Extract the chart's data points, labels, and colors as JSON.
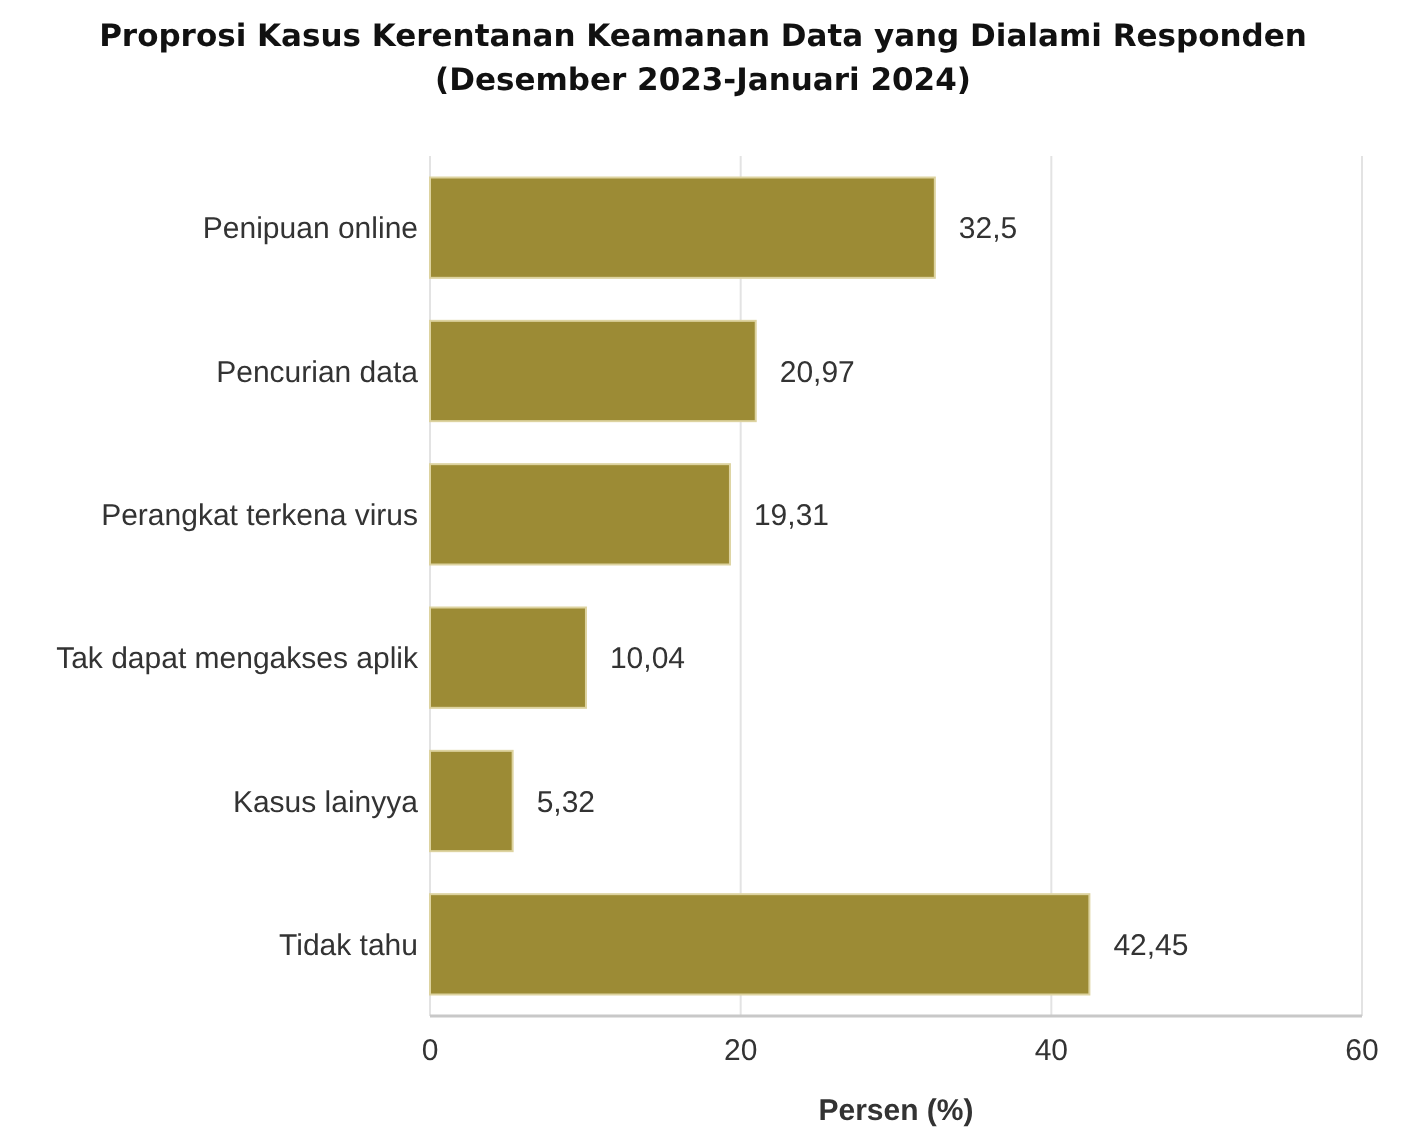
{
  "chart_data": {
    "type": "bar",
    "orientation": "horizontal",
    "title": "Proprosi Kasus Kerentanan Keamanan Data yang Dialami Responden\n(Desember 2023-Januari 2024)",
    "xlabel": "Persen (%)",
    "categories": [
      "Penipuan online",
      "Pencurian data",
      "Perangkat terkena virus",
      "Tak dapat mengakses aplik",
      "Kasus lainyya",
      "Tidak tahu"
    ],
    "values": [
      32.5,
      20.97,
      19.31,
      10.04,
      5.32,
      42.45
    ],
    "value_labels": [
      "32,5",
      "20,97",
      "19,31",
      "10,04",
      "5,32",
      "42,45"
    ],
    "color": "#9c8b35",
    "xlim": [
      0,
      60
    ],
    "xticks": [
      0,
      20,
      40,
      60
    ],
    "grid": "x"
  }
}
